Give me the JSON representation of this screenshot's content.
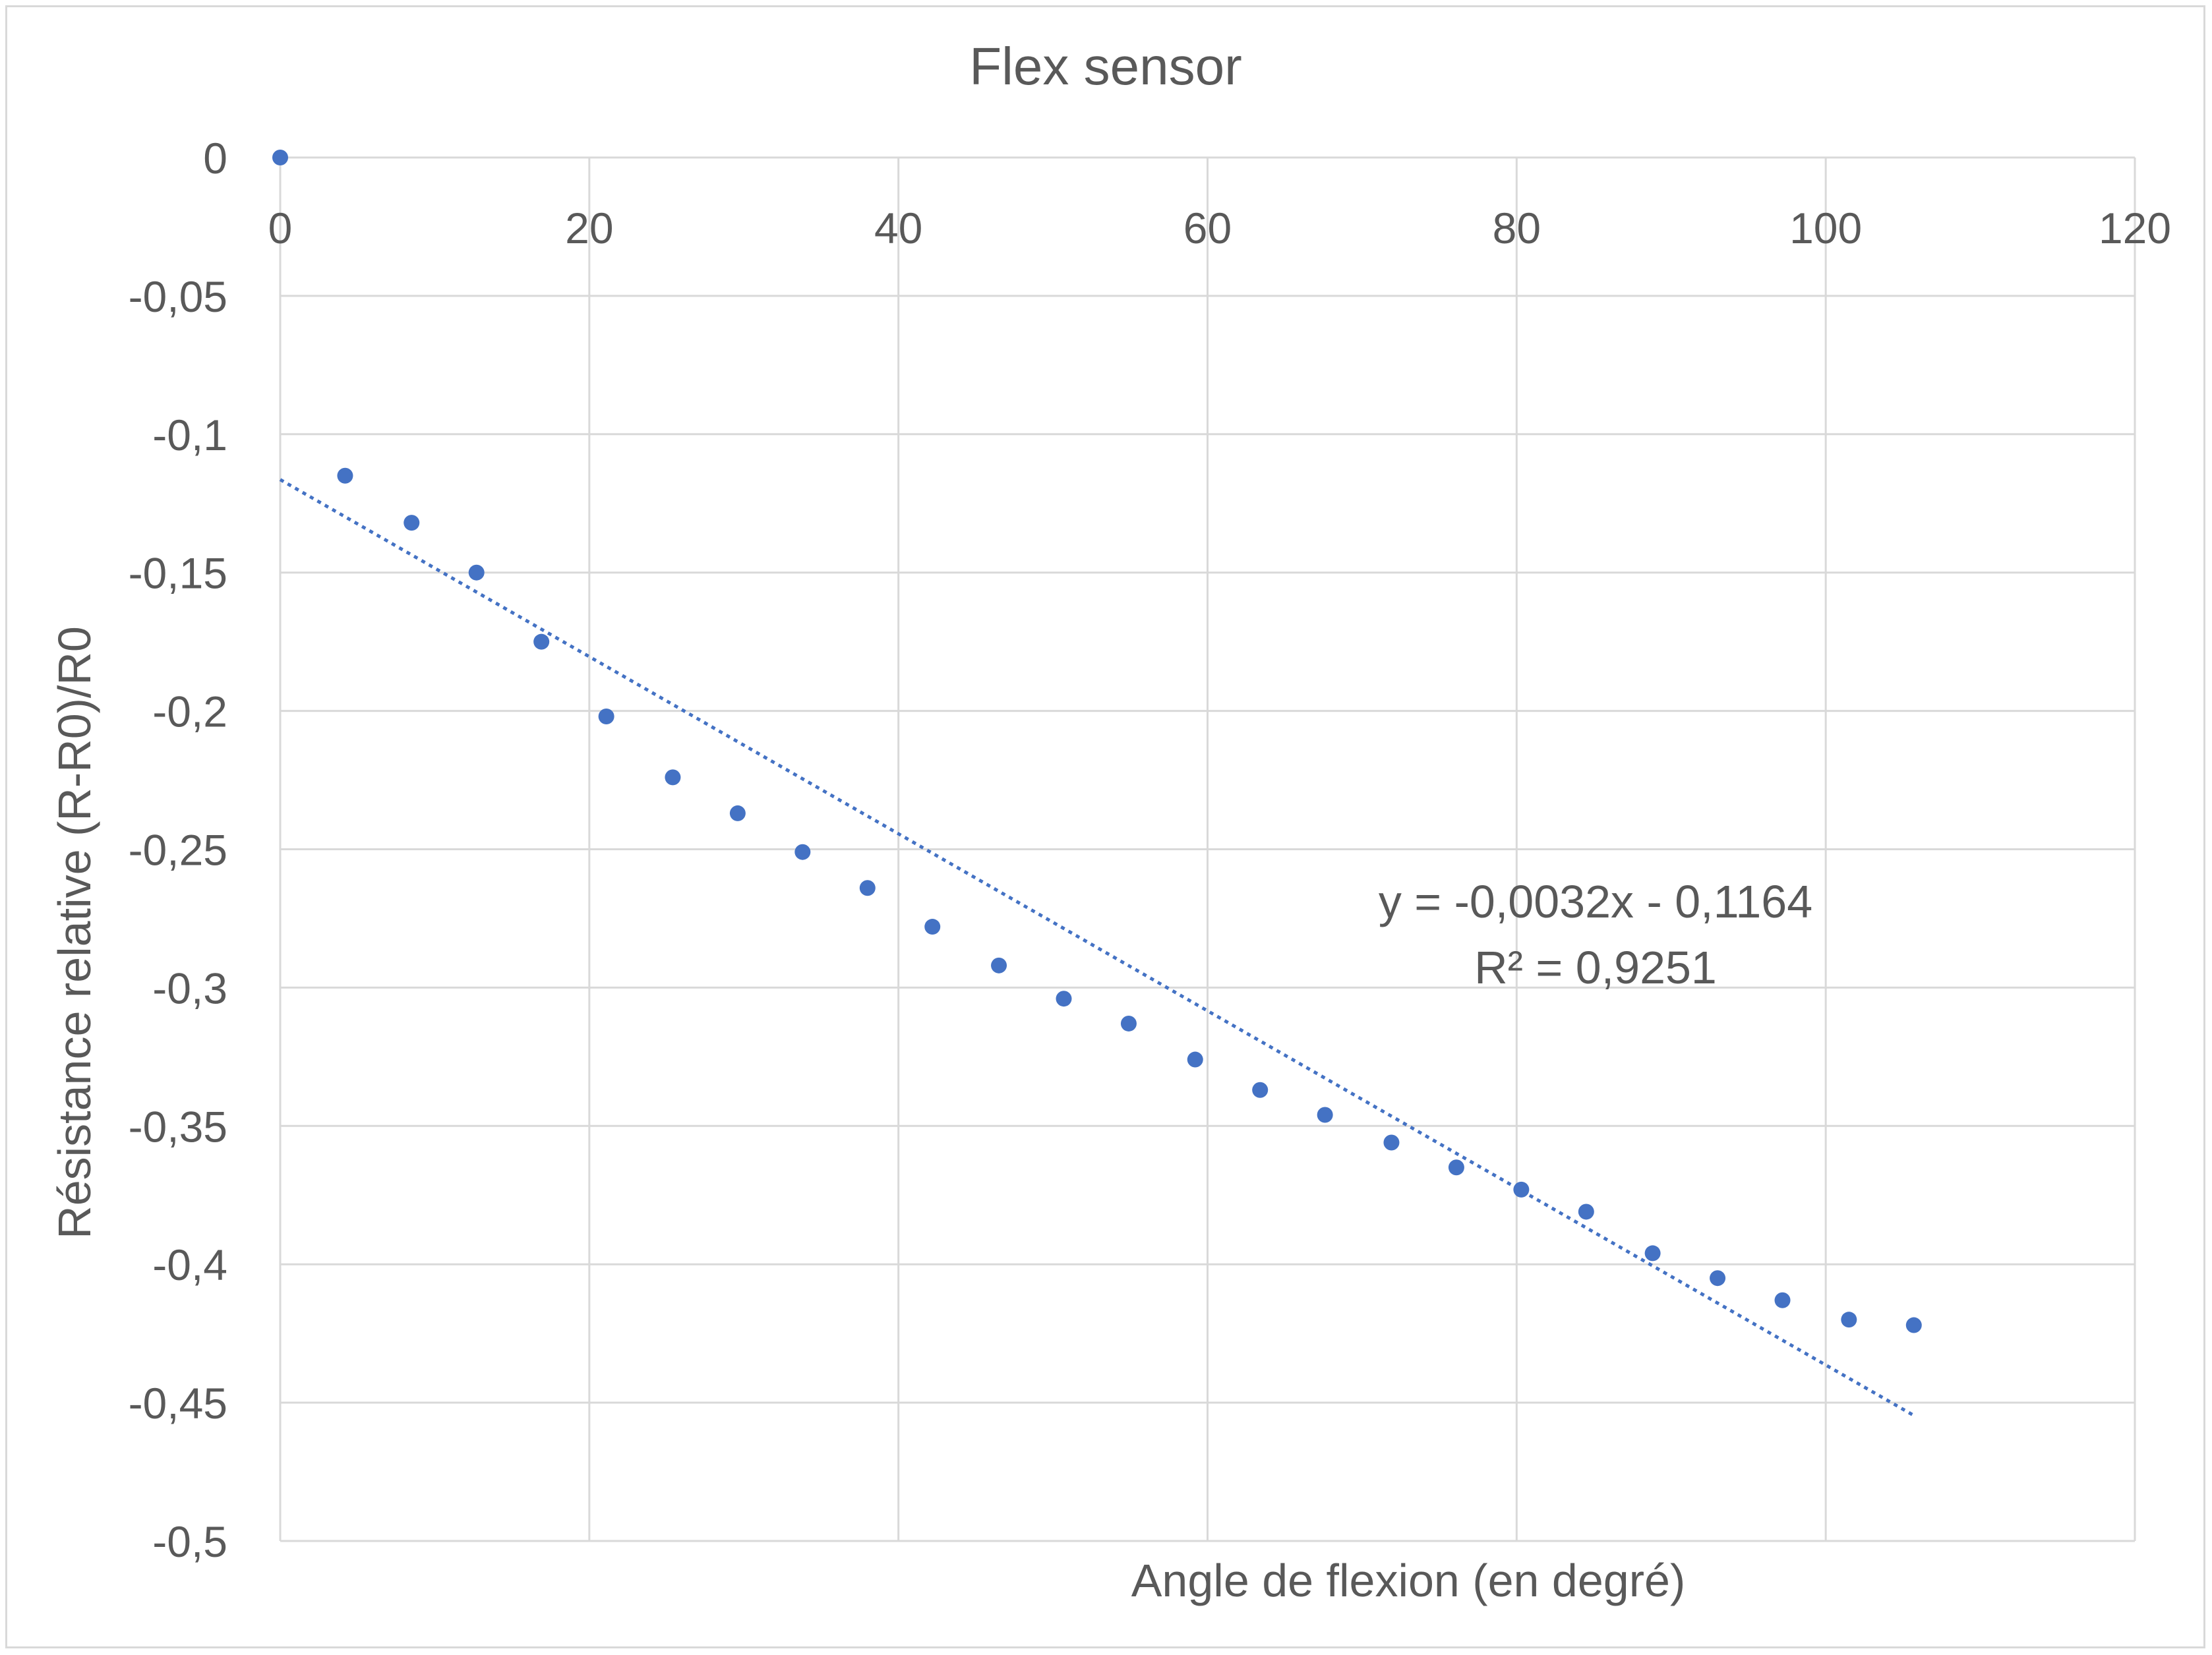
{
  "chart_data": {
    "type": "scatter",
    "title": "Flex sensor",
    "xlabel": "Angle de flexion (en degré)",
    "ylabel": "Résistance relative (R-R0)/R0",
    "xlim": [
      0,
      120
    ],
    "ylim": [
      -0.5,
      0
    ],
    "x_ticks": [
      0,
      20,
      40,
      60,
      80,
      100,
      120
    ],
    "y_ticks": [
      0,
      -0.05,
      -0.1,
      -0.15,
      -0.2,
      -0.25,
      -0.3,
      -0.35,
      -0.4,
      -0.45,
      -0.5
    ],
    "x_tick_labels": [
      "0",
      "20",
      "40",
      "60",
      "80",
      "100",
      "120"
    ],
    "y_tick_labels": [
      "0",
      "-0,05",
      "-0,1",
      "-0,15",
      "-0,2",
      "-0,25",
      "-0,3",
      "-0,35",
      "-0,4",
      "-0,45",
      "-0,5"
    ],
    "grid": true,
    "series": [
      {
        "color": "#4472c4",
        "x": [
          0,
          4.2,
          8.5,
          12.7,
          16.9,
          21.1,
          25.4,
          29.6,
          33.8,
          38.0,
          42.2,
          46.5,
          50.7,
          54.9,
          59.2,
          63.4,
          67.6,
          71.9,
          76.1,
          80.3,
          84.5,
          88.8,
          93.0,
          97.2,
          101.5,
          105.7
        ],
        "y": [
          0,
          -0.115,
          -0.132,
          -0.15,
          -0.175,
          -0.202,
          -0.224,
          -0.237,
          -0.251,
          -0.264,
          -0.278,
          -0.292,
          -0.304,
          -0.313,
          -0.326,
          -0.337,
          -0.346,
          -0.356,
          -0.365,
          -0.373,
          -0.381,
          -0.396,
          -0.405,
          -0.413,
          -0.42,
          -0.422
        ]
      }
    ],
    "trendline": {
      "type": "linear",
      "slope": -0.0032,
      "intercept": -0.1164,
      "x_range": [
        0,
        105.7
      ],
      "equation": "y = -0,0032x - 0,1164",
      "r_squared": "R² = 0,9251",
      "color": "#4472c4"
    }
  }
}
